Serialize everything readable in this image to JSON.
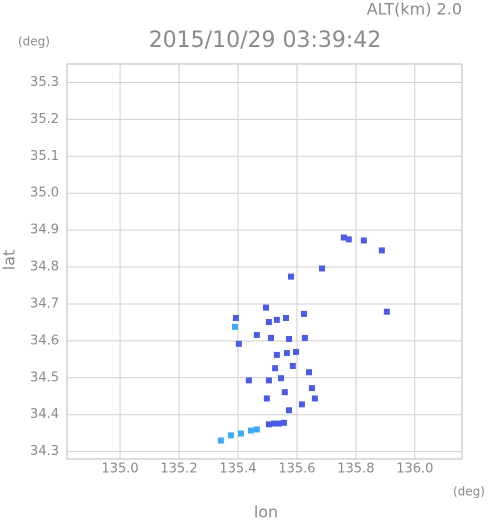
{
  "chart_data": {
    "type": "scatter",
    "altitude_label": "ALT(km) 2.0",
    "title": "2015/10/29 03:39:42",
    "y_unit": "(deg)",
    "x_unit": "(deg)",
    "xlabel": "lon",
    "ylabel": "lat",
    "xlim": [
      134.82,
      136.16
    ],
    "ylim": [
      34.28,
      35.35
    ],
    "xticks": [
      {
        "value": 135,
        "label": "135.0"
      },
      135.2,
      135.4,
      135.6,
      135.8,
      {
        "value": 136,
        "label": "136.0"
      }
    ],
    "yticks": [
      34.3,
      34.4,
      34.5,
      34.6,
      34.7,
      34.8,
      34.9,
      {
        "value": 35,
        "label": "35.0"
      },
      35.1,
      35.2,
      35.3
    ],
    "grid": true,
    "series": [
      {
        "color": "#4a5ce6",
        "x": [
          135.759,
          135.776,
          135.827,
          135.888,
          135.58,
          135.685,
          135.905,
          135.495,
          135.393,
          135.505,
          135.532,
          135.563,
          135.624,
          135.403,
          135.464,
          135.512,
          135.573,
          135.627,
          135.532,
          135.566,
          135.597,
          135.526,
          135.505,
          135.546,
          135.586,
          135.641,
          135.437,
          135.498,
          135.559,
          135.651,
          135.617,
          135.661,
          135.573,
          135.505,
          135.522,
          135.539,
          135.556
        ],
        "values": [
          34.88,
          34.875,
          34.872,
          34.845,
          34.774,
          34.796,
          34.679,
          34.69,
          34.662,
          34.651,
          34.657,
          34.662,
          34.673,
          34.592,
          34.616,
          34.608,
          34.605,
          34.608,
          34.562,
          34.567,
          34.57,
          34.526,
          34.493,
          34.499,
          34.532,
          34.515,
          34.493,
          34.444,
          34.461,
          34.472,
          34.428,
          34.444,
          34.412,
          34.374,
          34.376,
          34.376,
          34.378
        ]
      },
      {
        "color": "#3fa9f2",
        "x": [
          135.342,
          135.376,
          135.41,
          135.444,
          135.464,
          135.39
        ],
        "values": [
          34.33,
          34.344,
          34.349,
          34.357,
          34.36,
          34.638
        ]
      }
    ]
  }
}
